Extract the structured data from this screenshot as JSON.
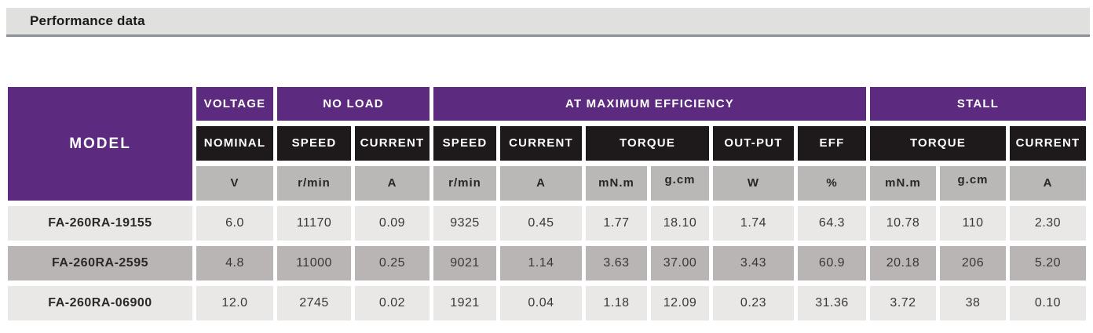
{
  "section": {
    "title": "Performance data"
  },
  "table": {
    "model_header": "MODEL",
    "groups": [
      "VOLTAGE",
      "NO LOAD",
      "AT MAXIMUM EFFICIENCY",
      "STALL"
    ],
    "subheaders": [
      "NOMINAL",
      "SPEED",
      "CURRENT",
      "SPEED",
      "CURRENT",
      "TORQUE",
      "OUT-PUT",
      "EFF",
      "TORQUE",
      "CURRENT"
    ],
    "units": [
      "V",
      "r/min",
      "A",
      "r/min",
      "A",
      "mN.m",
      "g.cm",
      "W",
      "%",
      "mN.m",
      "g.cm",
      "A"
    ],
    "rows": [
      {
        "model": "FA-260RA-19155",
        "values": [
          "6.0",
          "11170",
          "0.09",
          "9325",
          "0.45",
          "1.77",
          "18.10",
          "1.74",
          "64.3",
          "10.78",
          "110",
          "2.30"
        ]
      },
      {
        "model": "FA-260RA-2595",
        "values": [
          "4.8",
          "11000",
          "0.25",
          "9021",
          "1.14",
          "3.63",
          "37.00",
          "3.43",
          "60.9",
          "20.18",
          "206",
          "5.20"
        ]
      },
      {
        "model": "FA-260RA-06900",
        "values": [
          "12.0",
          "2745",
          "0.02",
          "1921",
          "0.04",
          "1.18",
          "12.09",
          "0.23",
          "31.36",
          "3.72",
          "38",
          "0.10"
        ]
      }
    ]
  },
  "colors": {
    "header_purple": "#5c2b80",
    "header_black": "#1e1a1b",
    "unit_gray": "#bab8b6",
    "row_light": "#e9e8e7",
    "row_dark": "#b9b5b4",
    "bar_gray": "#e0e0de",
    "bar_border": "#8a9095"
  }
}
